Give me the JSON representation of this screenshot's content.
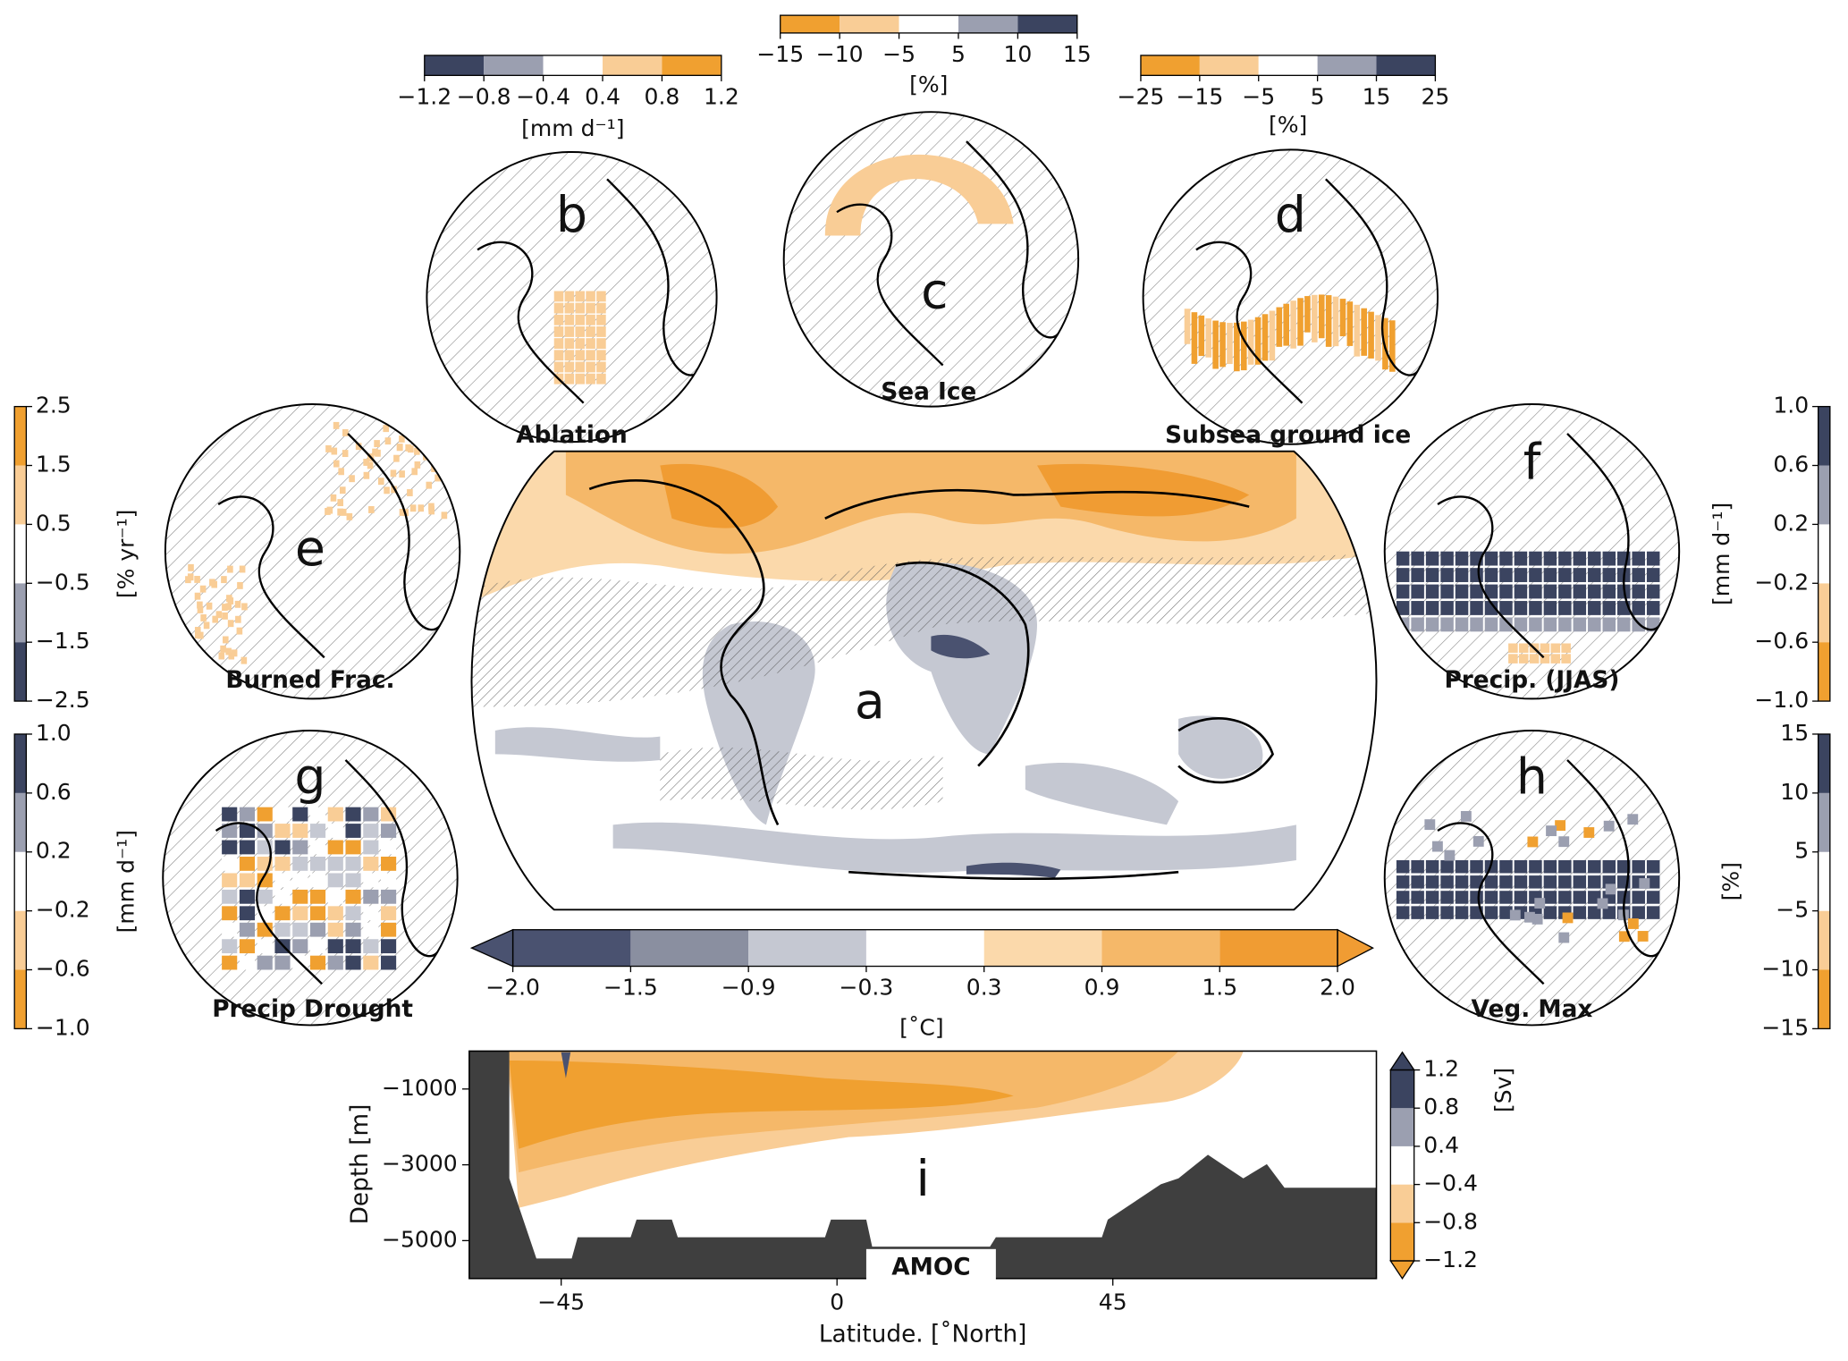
{
  "panels": [
    {
      "letter": "a",
      "colorbar": {
        "label": "[˚C]",
        "extend": true,
        "ticks": [
          {
            "value": -2.0,
            "label": "−2.0"
          },
          {
            "value": -1.5,
            "label": "−1.5"
          },
          {
            "value": -0.9,
            "label": "−0.9"
          },
          {
            "value": -0.3,
            "label": "−0.3"
          },
          0.3,
          0.9,
          1.5,
          {
            "value": 2.0,
            "label": "2.0"
          }
        ],
        "colors": [
          "#4a5270",
          "#8a8fa0",
          "#c5c8d2",
          "#ffffff",
          "#fbd9ab",
          "#f5b869",
          "#f09c33"
        ]
      }
    },
    {
      "letter": "b",
      "title": "Ablation",
      "colorbar": {
        "label": "[mm d⁻¹]",
        "extend": false,
        "ticks": [
          {
            "value": -1.2,
            "label": "−1.2"
          },
          {
            "value": -0.8,
            "label": "−0.8"
          },
          {
            "value": -0.4,
            "label": "−0.4"
          },
          0.4,
          0.8,
          1.2
        ],
        "colors": [
          "#3b4460",
          "#9b9fb0",
          "#ffffff",
          "#f9cd96",
          "#f0a030"
        ]
      }
    },
    {
      "letter": "c",
      "title": "Sea Ice",
      "colorbar": {
        "label": "[%]",
        "extend": false,
        "ticks": [
          {
            "value": -15,
            "label": "−15"
          },
          {
            "value": -10,
            "label": "−10"
          },
          {
            "value": -5,
            "label": "−5"
          },
          5,
          10,
          15
        ],
        "colors": [
          "#f0a030",
          "#f9cd96",
          "#ffffff",
          "#9b9fb0",
          "#3b4460"
        ]
      }
    },
    {
      "letter": "d",
      "title": "Subsea ground ice",
      "colorbar": {
        "label": "[%]",
        "extend": false,
        "ticks": [
          {
            "value": -25,
            "label": "−25"
          },
          {
            "value": -15,
            "label": "−15"
          },
          {
            "value": -5,
            "label": "−5"
          },
          5,
          15,
          25
        ],
        "colors": [
          "#f0a030",
          "#f9cd96",
          "#ffffff",
          "#9b9fb0",
          "#3b4460"
        ]
      }
    },
    {
      "letter": "e",
      "title": "Burned Frac.",
      "colorbar": {
        "label": "[% yr⁻¹]",
        "extend": false,
        "ticks": [
          {
            "value": -2.5,
            "label": "−2.5"
          },
          {
            "value": -1.5,
            "label": "−1.5"
          },
          {
            "value": -0.5,
            "label": "−0.5"
          },
          0.5,
          1.5,
          2.5
        ],
        "colors": [
          "#3b4460",
          "#9b9fb0",
          "#ffffff",
          "#f9cd96",
          "#f0a030"
        ]
      }
    },
    {
      "letter": "f",
      "title": "Precip. (JJAS)",
      "colorbar": {
        "label": "[mm d⁻¹]",
        "extend": false,
        "ticks": [
          {
            "value": -1.0,
            "label": "−1.0"
          },
          {
            "value": -0.6,
            "label": "−0.6"
          },
          {
            "value": -0.2,
            "label": "−0.2"
          },
          0.2,
          0.6,
          {
            "value": 1.0,
            "label": "1.0"
          }
        ],
        "colors": [
          "#f0a030",
          "#f9cd96",
          "#ffffff",
          "#9b9fb0",
          "#3b4460"
        ]
      }
    },
    {
      "letter": "g",
      "title": "Precip Drought",
      "colorbar": {
        "label": "[mm d⁻¹]",
        "extend": false,
        "ticks": [
          {
            "value": -1.0,
            "label": "−1.0"
          },
          {
            "value": -0.6,
            "label": "−0.6"
          },
          {
            "value": -0.2,
            "label": "−0.2"
          },
          0.2,
          0.6,
          {
            "value": 1.0,
            "label": "1.0"
          }
        ],
        "colors": [
          "#f0a030",
          "#f9cd96",
          "#ffffff",
          "#9b9fb0",
          "#3b4460"
        ]
      }
    },
    {
      "letter": "h",
      "title": "Veg. Max",
      "colorbar": {
        "label": "[%]",
        "extend": false,
        "ticks": [
          {
            "value": -15,
            "label": "−15"
          },
          {
            "value": -10,
            "label": "−10"
          },
          {
            "value": -5,
            "label": "−5"
          },
          5,
          10,
          15
        ],
        "colors": [
          "#f0a030",
          "#f9cd96",
          "#ffffff",
          "#9b9fb0",
          "#3b4460"
        ]
      }
    },
    {
      "letter": "i",
      "title": "AMOC",
      "colorbar": {
        "label": "[Sv]",
        "extend": true,
        "ticks": [
          {
            "value": -1.2,
            "label": "−1.2"
          },
          {
            "value": -0.8,
            "label": "−0.8"
          },
          {
            "value": -0.4,
            "label": "−0.4"
          },
          0.4,
          0.8,
          1.2
        ],
        "colors": [
          "#f0a030",
          "#f9cd96",
          "#ffffff",
          "#9b9fb0",
          "#3b4460"
        ]
      },
      "xlabel": "Latitude. [˚North]",
      "ylabel": "Depth [m]",
      "xlim": [
        -60,
        88
      ],
      "ylim": [
        -6000,
        0
      ],
      "xticks": [
        {
          "value": -45,
          "label": "−45"
        },
        0,
        45
      ],
      "yticks": [
        {
          "value": -1000,
          "label": "−1000"
        },
        {
          "value": -3000,
          "label": "−3000"
        },
        {
          "value": -5000,
          "label": "−5000"
        }
      ]
    }
  ]
}
